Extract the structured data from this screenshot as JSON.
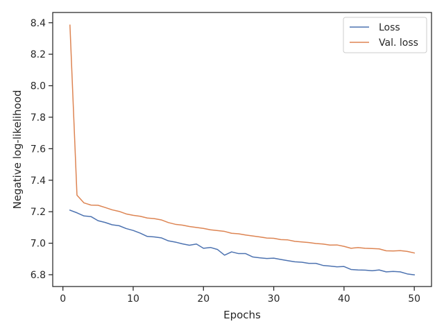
{
  "chart_data": {
    "type": "line",
    "title": "",
    "xlabel": "Epochs",
    "ylabel": "Negative log-likelihood",
    "xlim": [
      -1.45,
      52.45
    ],
    "ylim": [
      6.725,
      8.465
    ],
    "xticks": [
      0,
      10,
      20,
      30,
      40,
      50
    ],
    "yticks": [
      6.8,
      7.0,
      7.2,
      7.4,
      7.6,
      7.8,
      8.0,
      8.2,
      8.4
    ],
    "ytick_labels": [
      "6.8",
      "7.0",
      "7.2",
      "7.4",
      "7.6",
      "7.8",
      "8.0",
      "8.2",
      "8.4"
    ],
    "grid": false,
    "legend_position": "top-right",
    "x": [
      1,
      2,
      3,
      4,
      5,
      6,
      7,
      8,
      9,
      10,
      11,
      12,
      13,
      14,
      15,
      16,
      17,
      18,
      19,
      20,
      21,
      22,
      23,
      24,
      25,
      26,
      27,
      28,
      29,
      30,
      31,
      32,
      33,
      34,
      35,
      36,
      37,
      38,
      39,
      40,
      41,
      42,
      43,
      44,
      45,
      46,
      47,
      48,
      49,
      50
    ],
    "series": [
      {
        "name": "Loss",
        "color": "#4c72b0",
        "values": [
          7.21,
          7.193,
          7.173,
          7.169,
          7.143,
          7.132,
          7.117,
          7.111,
          7.093,
          7.081,
          7.064,
          7.043,
          7.04,
          7.034,
          7.015,
          7.007,
          6.996,
          6.987,
          6.995,
          6.968,
          6.973,
          6.96,
          6.924,
          6.945,
          6.934,
          6.934,
          6.913,
          6.907,
          6.903,
          6.905,
          6.897,
          6.889,
          6.882,
          6.879,
          6.872,
          6.872,
          6.859,
          6.855,
          6.85,
          6.852,
          6.833,
          6.83,
          6.829,
          6.825,
          6.83,
          6.818,
          6.821,
          6.818,
          6.805,
          6.799
        ]
      },
      {
        "name": "Val. loss",
        "color": "#dd8452",
        "values": [
          8.385,
          7.305,
          7.256,
          7.242,
          7.241,
          7.227,
          7.212,
          7.202,
          7.186,
          7.177,
          7.171,
          7.16,
          7.156,
          7.148,
          7.131,
          7.12,
          7.115,
          7.106,
          7.1,
          7.094,
          7.085,
          7.08,
          7.075,
          7.063,
          7.06,
          7.052,
          7.046,
          7.04,
          7.033,
          7.031,
          7.023,
          7.021,
          7.012,
          7.008,
          7.004,
          6.998,
          6.995,
          6.988,
          6.989,
          6.98,
          6.968,
          6.972,
          6.968,
          6.966,
          6.964,
          6.952,
          6.951,
          6.953,
          6.948,
          6.938
        ]
      }
    ]
  }
}
